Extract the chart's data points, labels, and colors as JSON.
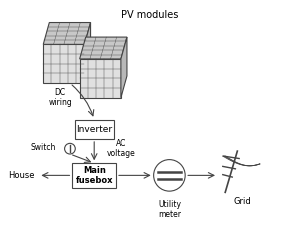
{
  "bg_color": "#ffffff",
  "fig_width": 3.0,
  "fig_height": 2.44,
  "dpi": 100,
  "labels": {
    "pv_modules": "PV modules",
    "dc_wiring": "DC\nwiring",
    "inverter": "Inverter",
    "switch": "Switch",
    "ac_voltage": "AC\nvoltage",
    "main_fusebox": "Main\nfusebox",
    "house": "House",
    "utility_meter": "Utility\nmeter",
    "grid": "Grid"
  },
  "colors": {
    "box_face": "#ffffff",
    "box_edge": "#444444",
    "arrow": "#444444",
    "text": "#000000",
    "panel_light": "#e0e0e0",
    "panel_dark": "#b0b0b0",
    "panel_edge": "#444444",
    "circle_fill": "#ffffff",
    "circle_edge": "#444444"
  }
}
